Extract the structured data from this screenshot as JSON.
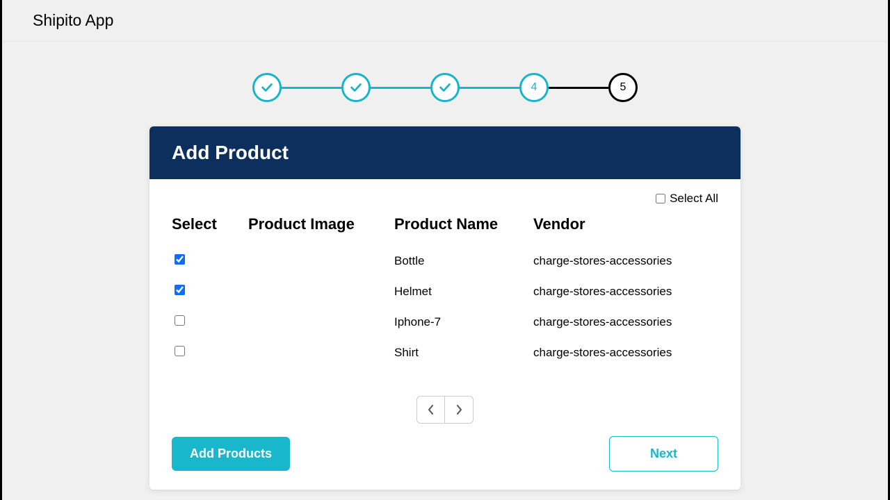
{
  "app": {
    "title": "Shipito App"
  },
  "stepper": {
    "steps": [
      {
        "state": "done"
      },
      {
        "state": "done"
      },
      {
        "state": "done"
      },
      {
        "state": "active",
        "label": "4"
      },
      {
        "state": "pending",
        "label": "5"
      }
    ],
    "accent_color": "#17b5c8",
    "pending_color": "#000000"
  },
  "card": {
    "title": "Add Product",
    "header_bg": "#0d2f5e",
    "select_all_label": "Select All",
    "select_all_checked": false,
    "columns": {
      "select": "Select",
      "image": "Product Image",
      "name": "Product Name",
      "vendor": "Vendor"
    },
    "rows": [
      {
        "checked": true,
        "name": "Bottle",
        "vendor": "charge-stores-accessories"
      },
      {
        "checked": true,
        "name": "Helmet",
        "vendor": "charge-stores-accessories"
      },
      {
        "checked": false,
        "name": "Iphone-7",
        "vendor": "charge-stores-accessories"
      },
      {
        "checked": false,
        "name": "Shirt",
        "vendor": "charge-stores-accessories"
      }
    ],
    "buttons": {
      "add": "Add Products",
      "next": "Next"
    }
  }
}
